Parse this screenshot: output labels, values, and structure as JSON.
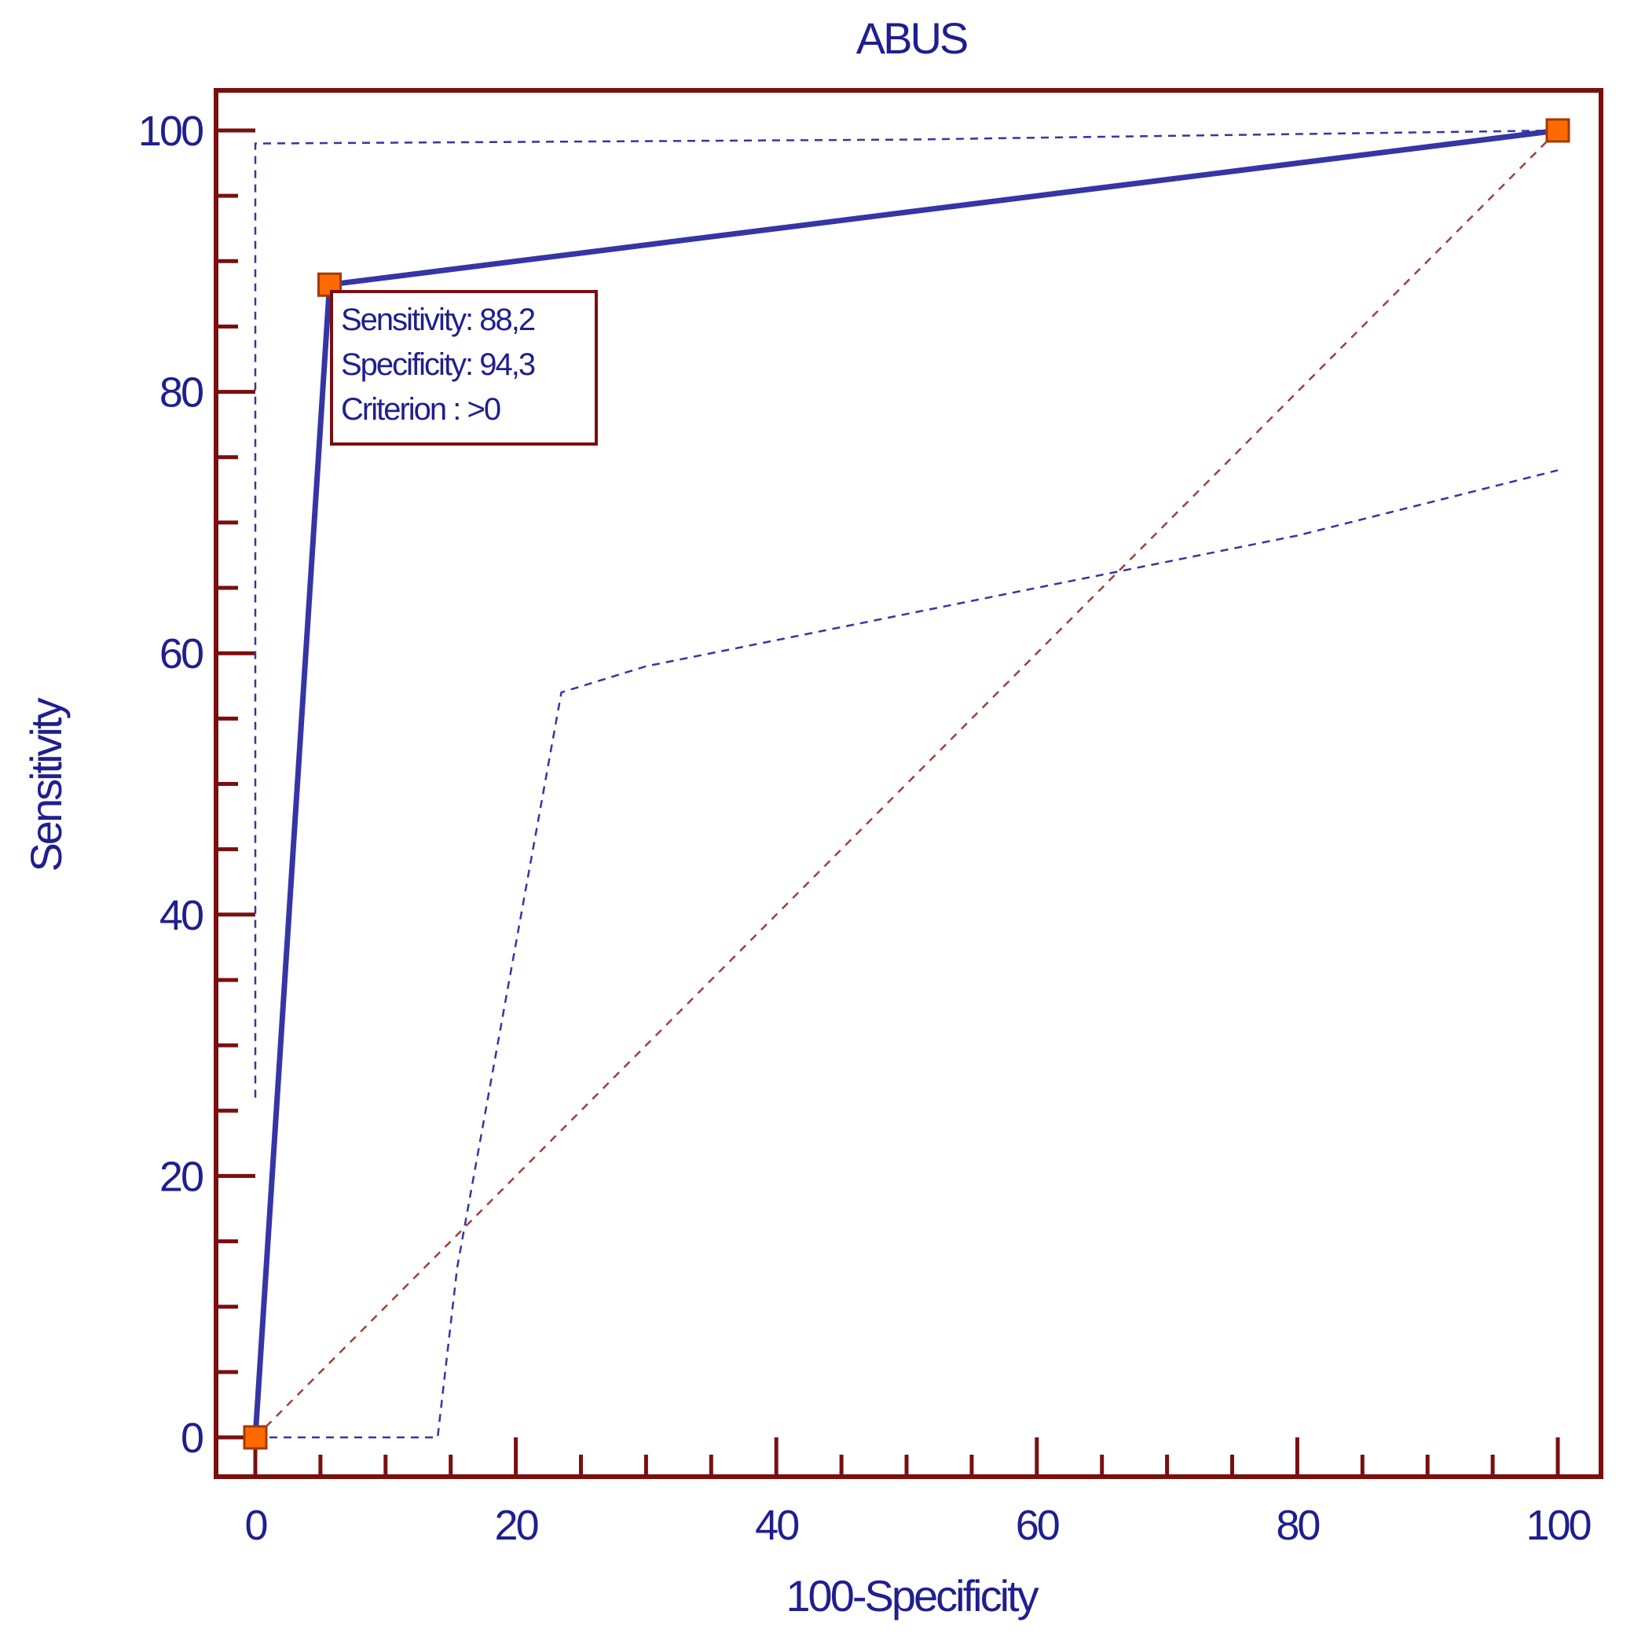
{
  "chart_data": {
    "type": "line",
    "title": "ABUS",
    "xlabel": "100-Specificity",
    "ylabel": "Sensitivity",
    "xlim": [
      0,
      100
    ],
    "ylim": [
      0,
      100
    ],
    "x_ticks": [
      0,
      20,
      40,
      60,
      80,
      100
    ],
    "y_ticks": [
      0,
      20,
      40,
      60,
      80,
      100
    ],
    "roc_curve": {
      "points": [
        {
          "x": 0,
          "y": 0
        },
        {
          "x": 5.7,
          "y": 88.2
        },
        {
          "x": 100,
          "y": 100
        }
      ],
      "color": "#3535a6"
    },
    "upper_confidence_bound": {
      "points": [
        {
          "x": 0,
          "y": 26
        },
        {
          "x": 0,
          "y": 99
        },
        {
          "x": 50,
          "y": 99.3
        },
        {
          "x": 78,
          "y": 99.7
        },
        {
          "x": 100,
          "y": 100
        }
      ],
      "color": "#3535a6"
    },
    "lower_confidence_bound": {
      "points": [
        {
          "x": 0,
          "y": 0
        },
        {
          "x": 14,
          "y": 0
        },
        {
          "x": 15.5,
          "y": 13
        },
        {
          "x": 23.5,
          "y": 57
        },
        {
          "x": 30,
          "y": 59
        },
        {
          "x": 40,
          "y": 61
        },
        {
          "x": 50,
          "y": 63
        },
        {
          "x": 60,
          "y": 65
        },
        {
          "x": 70,
          "y": 67
        },
        {
          "x": 80,
          "y": 69
        },
        {
          "x": 90,
          "y": 71.5
        },
        {
          "x": 100,
          "y": 74
        }
      ],
      "color": "#3535a6"
    },
    "reference_line": {
      "points": [
        {
          "x": 0,
          "y": 0
        },
        {
          "x": 100,
          "y": 100
        }
      ],
      "color": "#a0403a"
    },
    "markers": [
      {
        "x": 0,
        "y": 0
      },
      {
        "x": 5.7,
        "y": 88.2
      },
      {
        "x": 100,
        "y": 100
      }
    ],
    "annotation": {
      "lines": [
        "Sensitivity: 88,2",
        "Specificity: 94,3",
        "Criterion : >0"
      ]
    },
    "colors": {
      "frame": "#7a0f0f",
      "text": "#1f1f8f",
      "marker_fill": "#ff6a00",
      "marker_stroke": "#a33a00"
    }
  }
}
